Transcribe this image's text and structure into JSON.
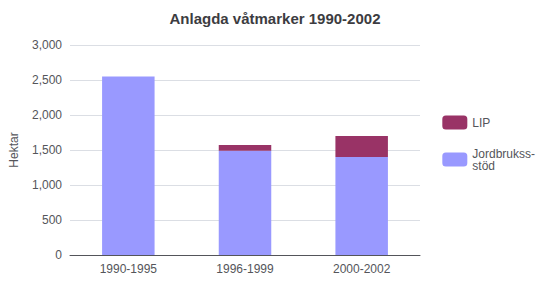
{
  "chart_data": {
    "type": "bar",
    "title": "Anlagda våtmarker 1990-2002",
    "ylabel": "Hektar",
    "categories": [
      "1990-1995",
      "1996-1999",
      "2000-2002"
    ],
    "series": [
      {
        "name": "Jordbrukss-\nstöd",
        "color": "#9999ff",
        "values": [
          2550,
          1490,
          1400
        ]
      },
      {
        "name": "LIP",
        "color": "#993366",
        "values": [
          0,
          80,
          300
        ]
      }
    ],
    "ylim": [
      0,
      3000
    ],
    "yticks": [
      0,
      500,
      1000,
      1500,
      2000,
      2500,
      3000
    ],
    "stacked": true,
    "grid": true,
    "legend": "right"
  }
}
